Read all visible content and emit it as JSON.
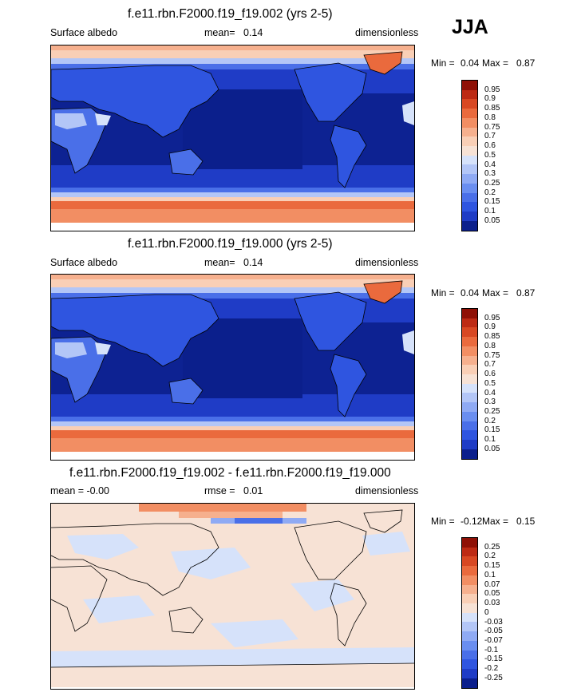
{
  "season": "JJA",
  "palette_main": [
    "#0b1f8c",
    "#1f3cc6",
    "#2f55e0",
    "#4a6fe8",
    "#6a8ef0",
    "#8faaf4",
    "#b3c6f7",
    "#d6e2fa",
    "#f7e2d5",
    "#f9cfb6",
    "#f6b08e",
    "#f28e63",
    "#ea6a3d",
    "#d84823",
    "#bd2a14",
    "#8f1006"
  ],
  "palette_diff": [
    "#0b1f8c",
    "#1f3cc6",
    "#2f55e0",
    "#4a6fe8",
    "#6a8ef0",
    "#8faaf4",
    "#b3c6f7",
    "#d6e2fa",
    "#f7e2d5",
    "#f9cfb6",
    "#f6b08e",
    "#f28e63",
    "#ea6a3d",
    "#d84823",
    "#bd2a14",
    "#8f1006"
  ],
  "panels": [
    {
      "title": "f.e11.rbn.F2000.f19_f19.002 (yrs 2-5)",
      "left_label": "Surface albedo",
      "mean_label": "mean=",
      "mean_value": "0.14",
      "units": "dimensionless",
      "min_label": "Min =",
      "min_value": "0.04",
      "max_label": "Max =",
      "max_value": "0.87",
      "levels": [
        "0.95",
        "0.9",
        "0.85",
        "0.8",
        "0.75",
        "0.7",
        "0.6",
        "0.5",
        "0.4",
        "0.3",
        "0.25",
        "0.2",
        "0.15",
        "0.1",
        "0.05"
      ]
    },
    {
      "title": "f.e11.rbn.F2000.f19_f19.000 (yrs 2-5)",
      "left_label": "Surface albedo",
      "mean_label": "mean=",
      "mean_value": "0.14",
      "units": "dimensionless",
      "min_label": "Min =",
      "min_value": "0.04",
      "max_label": "Max =",
      "max_value": "0.87",
      "levels": [
        "0.95",
        "0.9",
        "0.85",
        "0.8",
        "0.75",
        "0.7",
        "0.6",
        "0.5",
        "0.4",
        "0.3",
        "0.25",
        "0.2",
        "0.15",
        "0.1",
        "0.05"
      ]
    },
    {
      "title": "f.e11.rbn.F2000.f19_f19.002 - f.e11.rbn.F2000.f19_f19.000",
      "left_label": "mean = -0.00",
      "mean_label": "rmse =",
      "mean_value": "0.01",
      "units": "dimensionless",
      "min_label": "Min =",
      "min_value": "-0.12",
      "max_label": "Max =",
      "max_value": "0.15",
      "levels": [
        "0.25",
        "0.2",
        "0.15",
        "0.1",
        "0.07",
        "0.05",
        "0.03",
        "0",
        "-0.03",
        "-0.05",
        "-0.07",
        "-0.1",
        "-0.15",
        "-0.2",
        "-0.25"
      ]
    }
  ]
}
